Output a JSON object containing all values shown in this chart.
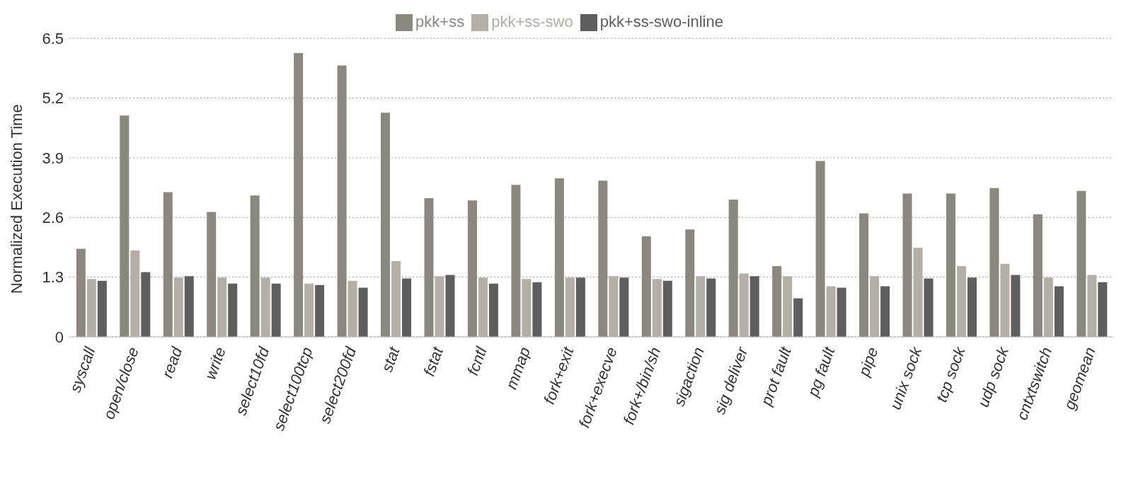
{
  "chart_data": {
    "type": "bar",
    "ylabel": "Normalized Execution Time",
    "categories": [
      "syscall",
      "open/close",
      "read",
      "write",
      "select10fd",
      "select100tcp",
      "select200fd",
      "stat",
      "fstat",
      "fcntl",
      "mmap",
      "fork+exit",
      "fork+execve",
      "fork+/bin/sh",
      "sigaction",
      "sig deliver",
      "prot fault",
      "pg fault",
      "pipe",
      "unix sock",
      "tcp sock",
      "udp sock",
      "cntxtswitch",
      "geomean"
    ],
    "series": [
      {
        "name": "pkk+ss",
        "color": "#8a877e",
        "values": [
          1.92,
          4.82,
          3.15,
          2.72,
          3.08,
          6.18,
          5.91,
          4.88,
          3.02,
          2.97,
          3.31,
          3.45,
          3.4,
          2.19,
          2.34,
          2.99,
          1.54,
          3.83,
          2.69,
          3.12,
          3.12,
          3.24,
          2.67,
          3.18
        ]
      },
      {
        "name": "pkk+ss-swo",
        "color": "#b3aea6",
        "values": [
          1.26,
          1.88,
          1.29,
          1.29,
          1.29,
          1.16,
          1.22,
          1.65,
          1.32,
          1.29,
          1.26,
          1.29,
          1.32,
          1.26,
          1.32,
          1.38,
          1.32,
          1.1,
          1.32,
          1.94,
          1.54,
          1.59,
          1.29,
          1.35
        ]
      },
      {
        "name": "pkk+ss-swo-inline",
        "color": "#5e5e5e",
        "values": [
          1.22,
          1.41,
          1.32,
          1.16,
          1.16,
          1.13,
          1.07,
          1.27,
          1.35,
          1.16,
          1.19,
          1.29,
          1.29,
          1.22,
          1.27,
          1.32,
          0.84,
          1.07,
          1.1,
          1.27,
          1.29,
          1.35,
          1.1,
          1.19
        ]
      }
    ],
    "ylim": [
      0,
      6.5
    ],
    "yticks": [
      {
        "value": 0,
        "label": "0"
      },
      1.3,
      2.6,
      3.9,
      5.2,
      6.5
    ],
    "grid": "y",
    "legend": "top"
  }
}
